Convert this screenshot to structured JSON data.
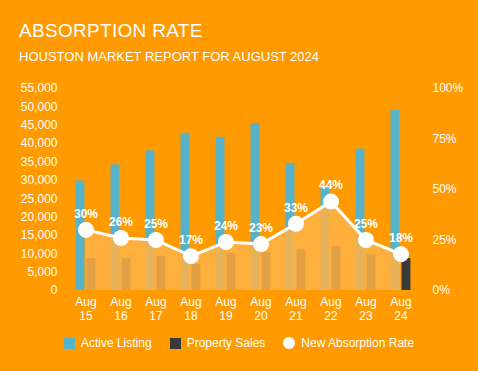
{
  "chart_data": {
    "type": "bar",
    "title": "ABSORPTION RATE",
    "subtitle": "HOUSTON MARKET REPORT FOR AUGUST 2024",
    "categories": [
      "Aug 15",
      "Aug 16",
      "Aug 17",
      "Aug 18",
      "Aug 19",
      "Aug 20",
      "Aug 21",
      "Aug 22",
      "Aug 23",
      "Aug 24"
    ],
    "series": [
      {
        "name": "Active Listing",
        "color": "#57b3c9",
        "values": [
          29800,
          34200,
          38000,
          42800,
          41700,
          45400,
          34600,
          27800,
          38500,
          49000
        ]
      },
      {
        "name": "Property Sales",
        "color": "#3a3a3a",
        "values": [
          8700,
          8700,
          9300,
          7100,
          10100,
          10300,
          11100,
          12000,
          9700,
          8700
        ]
      },
      {
        "name": "New Absorption Rate",
        "type": "line",
        "axis": "y2",
        "color": "#ffffff",
        "marker": "circle",
        "data_labels": true,
        "values": [
          30,
          26,
          25,
          17,
          24,
          23,
          33,
          44,
          25,
          18
        ],
        "value_labels": [
          "30%",
          "26%",
          "25%",
          "17%",
          "24%",
          "23%",
          "33%",
          "44%",
          "25%",
          "18%"
        ]
      }
    ],
    "ylim": [
      0,
      55000
    ],
    "yticks": [
      0,
      {
        "value": 5000,
        "label": "5,000"
      },
      {
        "value": 10000,
        "label": "10,000"
      },
      {
        "value": 15000,
        "label": "15,000"
      },
      {
        "value": 20000,
        "label": "20,000"
      },
      {
        "value": 25000,
        "label": "25,000"
      },
      {
        "value": 30000,
        "label": "30,000"
      },
      {
        "value": 35000,
        "label": "35,000"
      },
      {
        "value": 40000,
        "label": "40,000"
      },
      {
        "value": 45000,
        "label": "45,000"
      },
      {
        "value": 50000,
        "label": "50,000"
      },
      {
        "value": 55000,
        "label": "55,000"
      }
    ],
    "y2lim": [
      0,
      100
    ],
    "y2ticks": [
      {
        "value": 0,
        "label": "0%"
      },
      {
        "value": 25,
        "label": "25%"
      },
      {
        "value": 50,
        "label": "50%"
      },
      {
        "value": 75,
        "label": "75%"
      },
      {
        "value": 100,
        "label": "100%"
      }
    ],
    "grid": false,
    "legend": "bottom"
  }
}
